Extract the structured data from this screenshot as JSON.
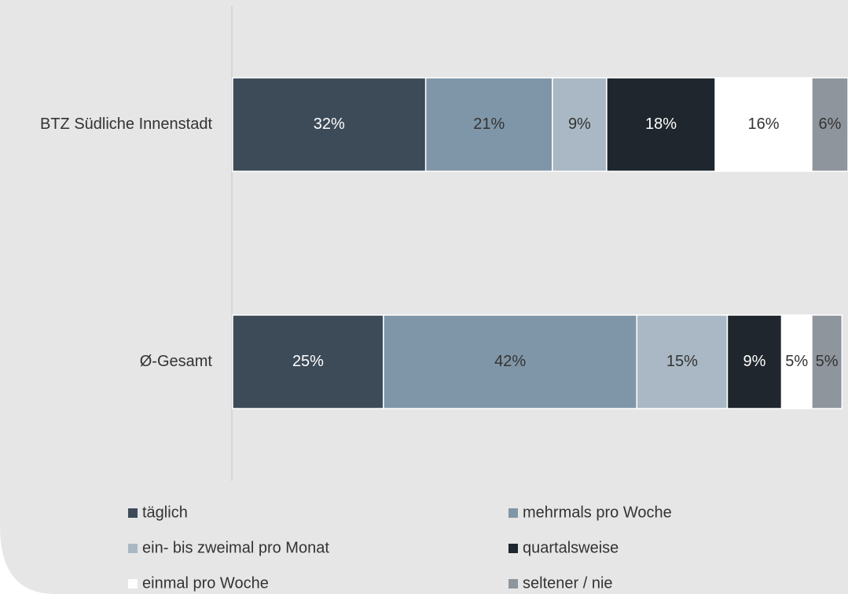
{
  "chart_data": {
    "type": "stacked_bar_horizontal",
    "categories": [
      "BTZ Südliche Innenstadt",
      "Ø-Gesamt"
    ],
    "xlim": [
      0,
      102
    ],
    "series": [
      {
        "name": "täglich",
        "color": "#3d4b59",
        "values": [
          32,
          25
        ],
        "value_labels": [
          "32%",
          "25%"
        ]
      },
      {
        "name": "mehrmals pro Woche",
        "color": "#7f96a8",
        "values": [
          21,
          42
        ],
        "value_labels": [
          "21%",
          "42%"
        ]
      },
      {
        "name": "ein- bis zweimal pro Monat",
        "color": "#a9b8c4",
        "values": [
          9,
          15
        ],
        "value_labels": [
          "9%",
          "15%"
        ]
      },
      {
        "name": "quartalsweise",
        "color": "#1f262d",
        "values": [
          18,
          9
        ],
        "value_labels": [
          "18%",
          "9%"
        ]
      },
      {
        "name": "einmal pro Woche",
        "color": "#ffffff",
        "values": [
          16,
          5
        ],
        "value_labels": [
          "16%",
          "5%"
        ]
      },
      {
        "name": "seltener / nie",
        "color": "#8e959c",
        "values": [
          6,
          5
        ],
        "value_labels": [
          "6%",
          "5%"
        ]
      }
    ]
  }
}
